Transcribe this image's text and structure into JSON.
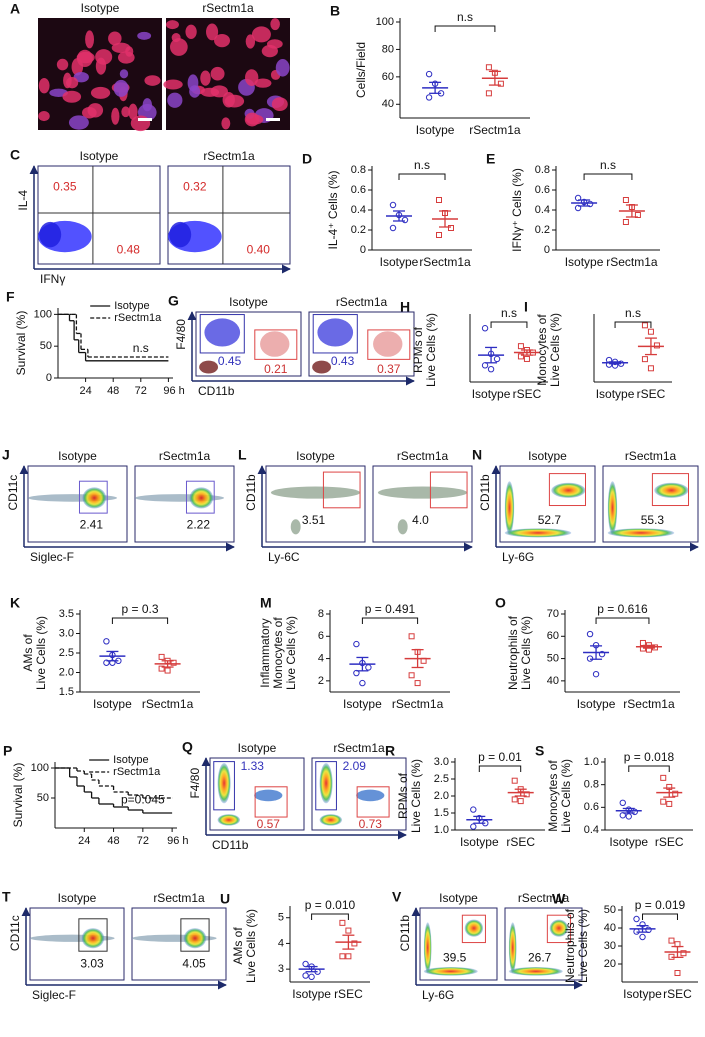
{
  "panels": [
    {
      "letter": "A",
      "kind": "image",
      "labels": [
        "Isotype",
        "rSectm1a"
      ]
    },
    {
      "letter": "B",
      "kind": "dotplot",
      "ylabel": [
        "Cells/Field"
      ],
      "annotation": "n.s",
      "ylim": [
        30,
        100
      ],
      "yticks": [
        40,
        60,
        80,
        100
      ],
      "groups": [
        {
          "name": "Isotype",
          "color": "#2e2ec2",
          "marker": "circle",
          "values": [
            62,
            55,
            48,
            45
          ],
          "mean": 52,
          "sem": 4
        },
        {
          "name": "rSectm1a",
          "color": "#d63c3c",
          "marker": "square",
          "values": [
            67,
            63,
            55,
            48
          ],
          "mean": 59,
          "sem": 5
        }
      ]
    },
    {
      "letter": "C",
      "kind": "flow",
      "xlabel": "IFNγ",
      "ylabel": "IL-4",
      "plots": [
        {
          "title": "Isotype",
          "gates": [
            0.35,
            0.48
          ]
        },
        {
          "title": "rSectm1a",
          "gates": [
            0.32,
            {
              "value": 0.4,
              "label": "0.40"
            }
          ]
        }
      ]
    },
    {
      "letter": "D",
      "kind": "dotplot",
      "ylabel": [
        "IL-4⁺ Cells (%)"
      ],
      "annotation": "n.s",
      "ylim": [
        0,
        0.8
      ],
      "yticks": [
        0,
        0.2,
        0.4,
        0.6,
        0.8
      ],
      "groups": [
        {
          "name": "Isotype",
          "color": "#2e2ec2",
          "marker": "circle",
          "values": [
            0.45,
            0.35,
            0.3,
            0.22
          ],
          "mean": 0.34,
          "sem": 0.05
        },
        {
          "name": "rSectm1a",
          "color": "#d63c3c",
          "marker": "square",
          "values": [
            0.5,
            0.37,
            0.22,
            0.15
          ],
          "mean": 0.31,
          "sem": 0.08
        }
      ]
    },
    {
      "letter": "E",
      "kind": "dotplot",
      "ylabel": [
        "IFNγ⁺ Cells (%)"
      ],
      "annotation": "n.s",
      "ylim": [
        0,
        0.8
      ],
      "yticks": [
        0,
        0.2,
        0.4,
        0.6,
        0.8
      ],
      "groups": [
        {
          "name": "Isotype",
          "color": "#2e2ec2",
          "marker": "circle",
          "values": [
            0.52,
            0.48,
            0.46,
            0.42
          ],
          "mean": 0.47,
          "sem": 0.03
        },
        {
          "name": "rSectm1a",
          "color": "#d63c3c",
          "marker": "square",
          "values": [
            0.5,
            0.43,
            0.35,
            0.28
          ],
          "mean": 0.39,
          "sem": 0.06
        }
      ]
    },
    {
      "letter": "F",
      "kind": "survival",
      "ylabel": [
        "Survival (%)"
      ],
      "annotation": "n.s",
      "xlim": [
        0,
        100
      ],
      "ylim": [
        0,
        110
      ],
      "xticks": [
        24,
        48,
        72,
        {
          "value": 96,
          "label": "96 h"
        }
      ],
      "yticks": [
        0,
        50,
        100
      ],
      "series": [
        {
          "name": "Isotype",
          "line_style": "solid",
          "x": [
            0,
            10,
            14,
            18,
            24,
            96
          ],
          "values": [
            100,
            90,
            60,
            40,
            27,
            27
          ]
        },
        {
          "name": "rSectm1a",
          "line_style": "dashed",
          "x": [
            0,
            12,
            16,
            20,
            26,
            96
          ],
          "values": [
            100,
            100,
            70,
            45,
            33,
            33
          ]
        }
      ]
    },
    {
      "letter": "G",
      "kind": "flow",
      "xlabel": "CD11b",
      "ylabel": "F4/80",
      "plots": [
        {
          "title": "Isotype",
          "gates": [
            0.45,
            0.21
          ]
        },
        {
          "title": "rSectm1a",
          "gates": [
            0.43,
            0.37
          ]
        }
      ]
    },
    {
      "letter": "H",
      "kind": "dotplot",
      "ylabel": [
        "RPMs of",
        "Live Cells (%)"
      ],
      "annotation": "n.s",
      "ylim": [
        0.2,
        0.7
      ],
      "groups": [
        {
          "name": "Isotype",
          "color": "#2e2ec2",
          "marker": "circle",
          "values": [
            0.62,
            0.42,
            0.38,
            0.33,
            0.3
          ],
          "mean": 0.41,
          "sem": 0.06
        },
        {
          "name": "rSEC",
          "color": "#d63c3c",
          "marker": "square",
          "values": [
            0.48,
            0.45,
            0.43,
            0.4,
            0.38
          ],
          "mean": 0.43,
          "sem": 0.02
        }
      ]
    },
    {
      "letter": "I",
      "kind": "dotplot",
      "ylabel": [
        "Monocytes of",
        "Live Cells (%)"
      ],
      "annotation": "n.s",
      "ylim": [
        0,
        0.7
      ],
      "groups": [
        {
          "name": "Isotype",
          "color": "#2e2ec2",
          "marker": "circle",
          "values": [
            0.24,
            0.22,
            0.2,
            0.19,
            0.18
          ],
          "mean": 0.21,
          "sem": 0.01
        },
        {
          "name": "rSEC",
          "color": "#d63c3c",
          "marker": "square",
          "values": [
            0.62,
            0.55,
            0.4,
            0.25,
            0.15
          ],
          "mean": 0.39,
          "sem": 0.09
        }
      ]
    },
    {
      "letter": "J",
      "kind": "flow",
      "xlabel": "Siglec-F",
      "ylabel": "CD11c",
      "plots": [
        {
          "title": "Isotype",
          "gates": [
            2.41
          ]
        },
        {
          "title": "rSectm1a",
          "gates": [
            2.22
          ]
        }
      ]
    },
    {
      "letter": "L",
      "kind": "flow",
      "xlabel": "Ly-6C",
      "ylabel": "CD11b",
      "plots": [
        {
          "title": "Isotype",
          "gates": [
            3.51
          ]
        },
        {
          "title": "rSectm1a",
          "gates": [
            {
              "value": 4,
              "label": "4.0"
            }
          ]
        }
      ]
    },
    {
      "letter": "N",
      "kind": "flow",
      "xlabel": "Ly-6G",
      "ylabel": "CD11b",
      "plots": [
        {
          "title": "Isotype",
          "gates": [
            52.7
          ]
        },
        {
          "title": "rSectm1a",
          "gates": [
            55.3
          ]
        }
      ]
    },
    {
      "letter": "K",
      "kind": "dotplot",
      "ylabel": [
        "AMs of",
        "Live Cells (%)"
      ],
      "annotation": "p = 0.3",
      "ylim": [
        1.5,
        3.5
      ],
      "yticks": [
        1.5,
        {
          "value": 2,
          "label": "2.0"
        },
        2.5,
        {
          "value": 3,
          "label": "3.0"
        },
        3.5
      ],
      "groups": [
        {
          "name": "Isotype",
          "color": "#2e2ec2",
          "marker": "circle",
          "values": [
            2.8,
            2.45,
            2.3,
            2.25,
            2.25
          ],
          "mean": 2.42,
          "sem": 0.12
        },
        {
          "name": "rSectm1a",
          "color": "#d63c3c",
          "marker": "square",
          "values": [
            2.4,
            2.3,
            2.25,
            2.1,
            2.05
          ],
          "mean": 2.22,
          "sem": 0.08
        }
      ]
    },
    {
      "letter": "M",
      "kind": "dotplot",
      "ylabel": [
        "Inflammatory",
        "Monocytes of",
        "Live Cells (%)"
      ],
      "annotation": "p = 0.491",
      "ylim": [
        1,
        8
      ],
      "yticks": [
        2,
        4,
        6,
        8
      ],
      "groups": [
        {
          "name": "Isotype",
          "color": "#2e2ec2",
          "marker": "circle",
          "values": [
            5.3,
            3.6,
            3.2,
            2.7,
            1.8
          ],
          "mean": 3.5,
          "sem": 0.6
        },
        {
          "name": "rSectm1a",
          "color": "#d63c3c",
          "marker": "square",
          "values": [
            6,
            4.6,
            3.8,
            2.5,
            1.8
          ],
          "mean": 4,
          "sem": 0.8
        }
      ]
    },
    {
      "letter": "O",
      "kind": "dotplot",
      "ylabel": [
        "Neutrophils of",
        "Live Cells (%)"
      ],
      "annotation": "p = 0.616",
      "ylim": [
        35,
        70
      ],
      "yticks": [
        40,
        50,
        60,
        70
      ],
      "groups": [
        {
          "name": "Isotype",
          "color": "#2e2ec2",
          "marker": "circle",
          "values": [
            61,
            56,
            52,
            50,
            43
          ],
          "mean": 52.7,
          "sem": 3
        },
        {
          "name": "rSectm1a",
          "color": "#d63c3c",
          "marker": "square",
          "values": [
            57,
            56,
            55,
            54.5,
            54
          ],
          "mean": 55.3,
          "sem": 0.6
        }
      ]
    },
    {
      "letter": "P",
      "kind": "survival",
      "ylabel": [
        "Survival (%)"
      ],
      "annotation": "p=0.045",
      "xlim": [
        0,
        100
      ],
      "ylim": [
        0,
        110
      ],
      "xticks": [
        24,
        48,
        72,
        {
          "value": 96,
          "label": "96 h"
        }
      ],
      "yticks": [
        50,
        100
      ],
      "series": [
        {
          "name": "Isotype",
          "line_style": "solid",
          "x": [
            0,
            12,
            18,
            24,
            30,
            36,
            48,
            60,
            72,
            96
          ],
          "values": [
            100,
            85,
            70,
            60,
            50,
            40,
            35,
            30,
            25,
            25
          ]
        },
        {
          "name": "rSectm1a",
          "line_style": "dashed",
          "x": [
            0,
            18,
            24,
            30,
            36,
            48,
            60,
            72,
            96
          ],
          "values": [
            100,
            95,
            90,
            80,
            70,
            60,
            55,
            50,
            50
          ]
        }
      ]
    },
    {
      "letter": "Q",
      "kind": "flow",
      "xlabel": "CD11b",
      "ylabel": "F4/80",
      "plots": [
        {
          "title": "Isotype",
          "gates": [
            1.33,
            0.57
          ]
        },
        {
          "title": "rSectm1a",
          "gates": [
            2.09,
            0.73
          ]
        }
      ]
    },
    {
      "letter": "R",
      "kind": "dotplot",
      "ylabel": [
        "RPMs of",
        "Live Cells (%)"
      ],
      "annotation": "p = 0.01",
      "ylim": [
        1,
        3
      ],
      "yticks": [
        {
          "value": 1,
          "label": "1.0"
        },
        1.5,
        {
          "value": 2,
          "label": "2.0"
        },
        2.5,
        {
          "value": 3,
          "label": "3.0"
        }
      ],
      "groups": [
        {
          "name": "Isotype",
          "color": "#2e2ec2",
          "marker": "circle",
          "values": [
            1.6,
            1.35,
            1.2,
            1.1
          ],
          "mean": 1.3,
          "sem": 0.1
        },
        {
          "name": "rSEC",
          "color": "#d63c3c",
          "marker": "square",
          "values": [
            2.45,
            2.2,
            2.05,
            1.9,
            1.85
          ],
          "mean": 2.1,
          "sem": 0.1
        }
      ]
    },
    {
      "letter": "S",
      "kind": "dotplot",
      "ylabel": [
        "Monocytes of",
        "Live Cells (%)"
      ],
      "annotation": "p = 0.018",
      "ylim": [
        0.4,
        1
      ],
      "yticks": [
        0.4,
        0.6,
        0.8,
        {
          "value": 1,
          "label": "1.0"
        }
      ],
      "groups": [
        {
          "name": "Isotype",
          "color": "#2e2ec2",
          "marker": "circle",
          "values": [
            0.64,
            0.58,
            0.56,
            0.53,
            0.52
          ],
          "mean": 0.57,
          "sem": 0.02
        },
        {
          "name": "rSEC",
          "color": "#d63c3c",
          "marker": "square",
          "values": [
            0.86,
            0.78,
            0.72,
            0.65,
            0.63
          ],
          "mean": 0.73,
          "sem": 0.04
        }
      ]
    },
    {
      "letter": "T",
      "kind": "flow",
      "xlabel": "Siglec-F",
      "ylabel": "CD11c",
      "plots": [
        {
          "title": "Isotype",
          "gates": [
            3.03
          ]
        },
        {
          "title": "rSectm1a",
          "gates": [
            4.05
          ]
        }
      ]
    },
    {
      "letter": "U",
      "kind": "dotplot",
      "ylabel": [
        "AMs of",
        "Live Cells (%)"
      ],
      "annotation": "p = 0.010",
      "ylim": [
        2.5,
        5.3
      ],
      "yticks": [
        3,
        4,
        5
      ],
      "groups": [
        {
          "name": "Isotype",
          "color": "#2e2ec2",
          "marker": "circle",
          "values": [
            3.2,
            3.1,
            2.9,
            2.75,
            2.7
          ],
          "mean": 3,
          "sem": 0.1
        },
        {
          "name": "rSEC",
          "color": "#d63c3c",
          "marker": "square",
          "values": [
            4.8,
            4.5,
            4,
            3.5,
            3.5
          ],
          "mean": 4.05,
          "sem": 0.27
        }
      ]
    },
    {
      "letter": "V",
      "kind": "flow",
      "xlabel": "Ly-6G",
      "ylabel": "CD11b",
      "plots": [
        {
          "title": "Isotype",
          "gates": [
            39.5
          ]
        },
        {
          "title": "rSectm1a",
          "gates": [
            26.7
          ]
        }
      ]
    },
    {
      "letter": "W",
      "kind": "dotplot",
      "ylabel": [
        "Neutrophils of",
        "Live Cells (%)"
      ],
      "annotation": "p = 0.019",
      "ylim": [
        10,
        50
      ],
      "yticks": [
        20,
        30,
        40,
        50
      ],
      "groups": [
        {
          "name": "Isotype",
          "color": "#2e2ec2",
          "marker": "circle",
          "values": [
            45,
            42,
            39,
            38,
            35
          ],
          "mean": 39.5,
          "sem": 1.8
        },
        {
          "name": "rSEC",
          "color": "#d63c3c",
          "marker": "square",
          "values": [
            33,
            31,
            26,
            24,
            15
          ],
          "mean": 26.7,
          "sem": 3
        }
      ]
    }
  ]
}
